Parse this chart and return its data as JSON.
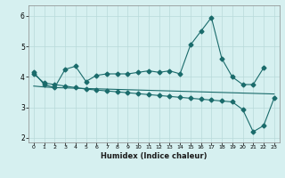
{
  "xlabel": "Humidex (Indice chaleur)",
  "bg_color": "#d6f0f0",
  "grid_color": "#b8dada",
  "line_color": "#1a6b6b",
  "xlim": [
    -0.5,
    23.5
  ],
  "ylim": [
    1.85,
    6.35
  ],
  "yticks": [
    2,
    3,
    4,
    5,
    6
  ],
  "xticks": [
    0,
    1,
    2,
    3,
    4,
    5,
    6,
    7,
    8,
    9,
    10,
    11,
    12,
    13,
    14,
    15,
    16,
    17,
    18,
    19,
    20,
    21,
    22,
    23
  ],
  "series1_x": [
    0,
    1,
    2,
    3,
    4,
    5,
    6,
    7,
    8,
    9,
    10,
    11,
    12,
    13,
    14,
    15,
    16,
    17,
    18,
    19,
    20,
    21,
    22
  ],
  "series1_y": [
    4.15,
    3.75,
    3.65,
    4.25,
    4.35,
    3.85,
    4.05,
    4.1,
    4.1,
    4.1,
    4.15,
    4.2,
    4.15,
    4.2,
    4.1,
    5.05,
    5.5,
    5.95,
    4.6,
    4.0,
    3.75,
    3.75,
    4.3
  ],
  "series2_x": [
    0,
    1,
    2,
    3,
    4,
    5,
    6,
    7,
    8,
    9,
    10,
    11,
    12,
    13,
    14,
    15,
    16,
    17,
    18,
    19,
    20,
    21,
    22,
    23
  ],
  "series2_y": [
    3.7,
    3.67,
    3.65,
    3.64,
    3.63,
    3.62,
    3.61,
    3.6,
    3.59,
    3.58,
    3.57,
    3.56,
    3.55,
    3.54,
    3.53,
    3.52,
    3.51,
    3.5,
    3.49,
    3.48,
    3.47,
    3.46,
    3.45,
    3.44
  ],
  "series3_x": [
    0,
    1,
    2,
    3,
    4,
    5,
    6,
    7,
    8,
    9,
    10,
    11,
    12,
    13,
    14,
    15,
    16,
    17,
    18,
    19,
    20,
    21,
    22,
    23
  ],
  "series3_y": [
    4.1,
    3.8,
    3.75,
    3.7,
    3.65,
    3.6,
    3.57,
    3.54,
    3.51,
    3.48,
    3.45,
    3.42,
    3.39,
    3.36,
    3.33,
    3.3,
    3.27,
    3.24,
    3.21,
    3.18,
    2.93,
    2.2,
    2.4,
    3.3
  ],
  "markersize": 2.5,
  "linewidth": 0.8
}
